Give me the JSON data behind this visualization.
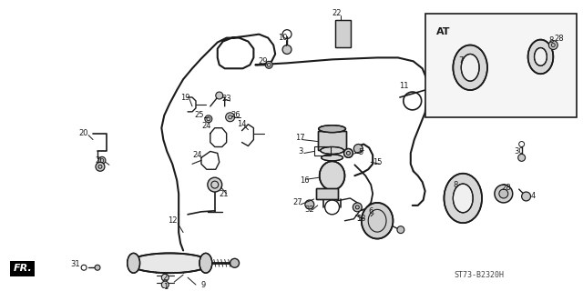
{
  "bg_color": "#ffffff",
  "line_color": "#1a1a1a",
  "text_color": "#1a1a1a",
  "figsize": [
    6.4,
    3.2
  ],
  "dpi": 100,
  "diagram_code": "ST73-B2320H",
  "fr_text": "FR.",
  "at_text": "AT"
}
